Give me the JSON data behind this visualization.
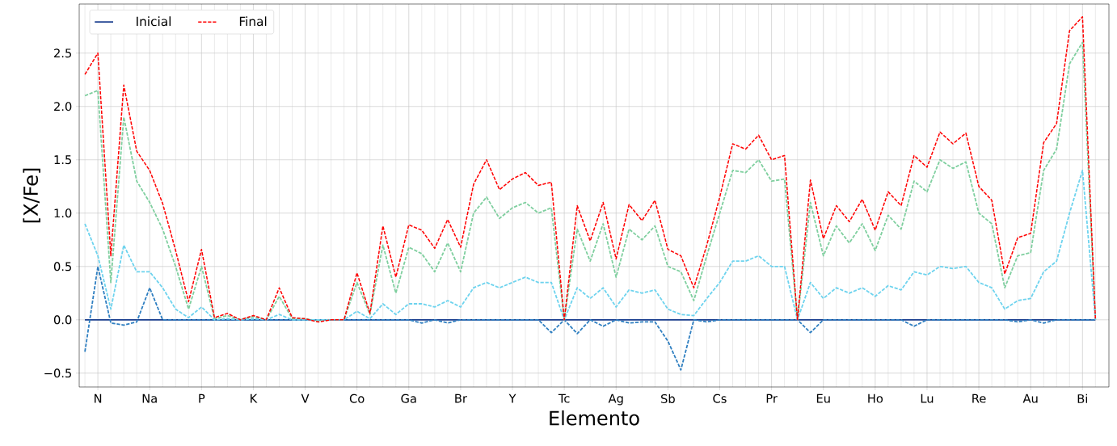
{
  "chart_data": {
    "type": "line",
    "xlabel": "Elemento",
    "ylabel": "[X/Fe]",
    "categories": [
      null,
      "N",
      null,
      null,
      null,
      "Na",
      null,
      null,
      null,
      "P",
      null,
      null,
      null,
      "K",
      null,
      null,
      null,
      "V",
      null,
      null,
      null,
      "Co",
      null,
      null,
      null,
      "Ga",
      null,
      null,
      null,
      "Br",
      null,
      null,
      null,
      "Y",
      null,
      null,
      null,
      "Tc",
      null,
      null,
      null,
      "Ag",
      null,
      null,
      null,
      "Sb",
      null,
      null,
      null,
      "Cs",
      null,
      null,
      null,
      "Pr",
      null,
      null,
      null,
      "Eu",
      null,
      null,
      null,
      "Ho",
      null,
      null,
      null,
      "Lu",
      null,
      null,
      null,
      "Re",
      null,
      null,
      null,
      "Au",
      null,
      null,
      null,
      "Bi",
      null
    ],
    "series": [
      {
        "name": "Inicial",
        "color": "#1b3f8f",
        "line_style": "solid",
        "values": [
          0,
          0,
          0,
          0,
          0,
          0,
          0,
          0,
          0,
          0,
          0,
          0,
          0,
          0,
          0,
          0,
          0,
          0,
          0,
          0,
          0,
          0,
          0,
          0,
          0,
          0,
          0,
          0,
          0,
          0,
          0,
          0,
          0,
          0,
          0,
          0,
          0,
          0,
          0,
          0,
          0,
          0,
          0,
          0,
          0,
          0,
          0,
          0,
          0,
          0,
          0,
          0,
          0,
          0,
          0,
          0,
          0,
          0,
          0,
          0,
          0,
          0,
          0,
          0,
          0,
          0,
          0,
          0,
          0,
          0,
          0,
          0,
          0,
          0,
          0,
          0,
          0,
          0,
          0
        ]
      },
      {
        "color": "#2f7fc1",
        "line_style": "dashed",
        "values": [
          -0.3,
          0.5,
          -0.03,
          -0.05,
          -0.02,
          0.3,
          0,
          0,
          0,
          0,
          0,
          0,
          0,
          0,
          0,
          0,
          0,
          0,
          0,
          0,
          0,
          0,
          0,
          0,
          0,
          0,
          -0.03,
          0,
          -0.03,
          0,
          0,
          0,
          0,
          0,
          0,
          0,
          -0.12,
          0,
          -0.13,
          0,
          -0.06,
          0,
          -0.03,
          -0.02,
          -0.02,
          -0.2,
          -0.47,
          0,
          -0.02,
          0,
          0,
          0,
          0,
          0,
          0,
          0,
          -0.12,
          0,
          0,
          0,
          0,
          0,
          0,
          0,
          -0.06,
          0,
          0,
          0,
          0,
          0,
          0,
          0,
          -0.02,
          0,
          -0.03,
          0,
          0,
          0,
          0
        ]
      },
      {
        "color": "#7fcf9f",
        "line_style": "dashed",
        "values": [
          2.1,
          2.15,
          0.35,
          1.9,
          1.3,
          1.1,
          0.85,
          0.5,
          0.1,
          0.5,
          0.01,
          0.04,
          0,
          0.03,
          0,
          0.22,
          0.01,
          0.01,
          -0.01,
          0,
          0,
          0.35,
          0.05,
          0.7,
          0.25,
          0.68,
          0.62,
          0.45,
          0.72,
          0.45,
          1.0,
          1.15,
          0.95,
          1.05,
          1.1,
          1.0,
          1.05,
          0,
          0.85,
          0.55,
          0.9,
          0.4,
          0.85,
          0.75,
          0.88,
          0.5,
          0.45,
          0.18,
          0.6,
          1.0,
          1.4,
          1.38,
          1.5,
          1.3,
          1.32,
          0,
          1.1,
          0.6,
          0.88,
          0.72,
          0.9,
          0.65,
          0.98,
          0.85,
          1.3,
          1.2,
          1.5,
          1.42,
          1.48,
          1.0,
          0.9,
          0.3,
          0.6,
          0.63,
          1.4,
          1.6,
          2.4,
          2.6,
          0
        ]
      },
      {
        "color": "#6dd3ee",
        "line_style": "dashed",
        "values": [
          0.9,
          0.6,
          0.1,
          0.7,
          0.45,
          0.45,
          0.3,
          0.1,
          0.02,
          0.12,
          0,
          0.01,
          0,
          0.01,
          0,
          0.05,
          0,
          0,
          0,
          0,
          0,
          0.08,
          0.01,
          0.15,
          0.05,
          0.15,
          0.15,
          0.12,
          0.18,
          0.12,
          0.3,
          0.35,
          0.3,
          0.35,
          0.4,
          0.35,
          0.35,
          0,
          0.3,
          0.2,
          0.3,
          0.12,
          0.28,
          0.25,
          0.28,
          0.1,
          0.05,
          0.04,
          0.2,
          0.35,
          0.55,
          0.55,
          0.6,
          0.5,
          0.5,
          0,
          0.35,
          0.2,
          0.3,
          0.25,
          0.3,
          0.22,
          0.32,
          0.28,
          0.45,
          0.42,
          0.5,
          0.48,
          0.5,
          0.35,
          0.3,
          0.1,
          0.18,
          0.2,
          0.45,
          0.55,
          1.0,
          1.4,
          0
        ]
      },
      {
        "name": "Final",
        "color": "#ff0000",
        "line_style": "dashed",
        "values": [
          2.3,
          2.5,
          0.6,
          2.2,
          1.58,
          1.4,
          1.09,
          0.65,
          0.17,
          0.66,
          0.02,
          0.06,
          0.0,
          0.04,
          0.0,
          0.3,
          0.02,
          0.01,
          -0.02,
          0.0,
          0.0,
          0.44,
          0.06,
          0.88,
          0.4,
          0.89,
          0.84,
          0.67,
          0.94,
          0.68,
          1.27,
          1.5,
          1.22,
          1.32,
          1.38,
          1.26,
          1.29,
          0.0,
          1.07,
          0.74,
          1.1,
          0.57,
          1.08,
          0.93,
          1.12,
          0.66,
          0.6,
          0.3,
          0.7,
          1.15,
          1.65,
          1.6,
          1.73,
          1.5,
          1.54,
          0.0,
          1.31,
          0.76,
          1.07,
          0.92,
          1.13,
          0.84,
          1.2,
          1.07,
          1.54,
          1.43,
          1.76,
          1.65,
          1.75,
          1.25,
          1.12,
          0.43,
          0.77,
          0.81,
          1.66,
          1.84,
          2.71,
          2.84,
          0.0
        ]
      }
    ],
    "ylim": [
      -0.63,
      2.96
    ],
    "yticks": [
      {
        "value": -0.5,
        "label": "−0.5"
      },
      {
        "value": 0,
        "label": "0.0"
      },
      0.5,
      {
        "value": 1,
        "label": "1.0"
      },
      1.5,
      {
        "value": 2,
        "label": "2.0"
      },
      2.5
    ],
    "grid": true,
    "legend": "top left",
    "marker": "none"
  }
}
